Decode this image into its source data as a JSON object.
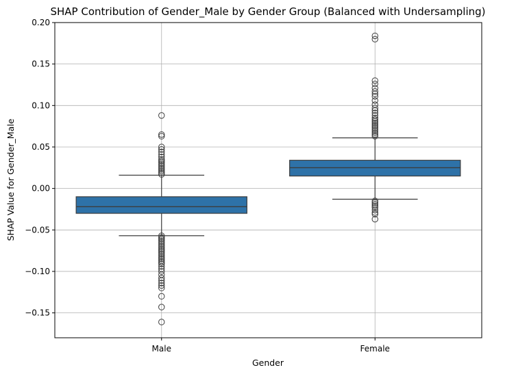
{
  "chart_data": {
    "type": "box",
    "title": "SHAP Contribution of Gender_Male by Gender Group (Balanced with Undersampling)",
    "xlabel": "Gender",
    "ylabel": "SHAP Value for Gender_Male",
    "ylim": [
      -0.18,
      0.2
    ],
    "yticks": [
      -0.15,
      -0.1,
      -0.05,
      0.0,
      0.05,
      0.1,
      0.15,
      0.2
    ],
    "ytick_labels": [
      "−0.15",
      "−0.10",
      "−0.05",
      "0.00",
      "0.05",
      "0.10",
      "0.15",
      "0.20"
    ],
    "grid": true,
    "box_color": "#2e72a8",
    "categories": [
      "Male",
      "Female"
    ],
    "boxes": [
      {
        "name": "Male",
        "whisker_low": -0.057,
        "q1": -0.03,
        "median": -0.022,
        "q3": -0.01,
        "whisker_high": 0.016,
        "outliers": [
          0.088,
          0.065,
          0.063,
          0.05,
          0.047,
          0.044,
          0.041,
          0.038,
          0.035,
          0.033,
          0.031,
          0.029,
          0.027,
          0.025,
          0.023,
          0.021,
          0.019,
          0.017,
          -0.057,
          -0.059,
          -0.061,
          -0.063,
          -0.065,
          -0.067,
          -0.069,
          -0.071,
          -0.073,
          -0.075,
          -0.077,
          -0.079,
          -0.081,
          -0.083,
          -0.085,
          -0.087,
          -0.089,
          -0.091,
          -0.094,
          -0.097,
          -0.1,
          -0.104,
          -0.108,
          -0.111,
          -0.114,
          -0.117,
          -0.12,
          -0.13,
          -0.143,
          -0.161
        ]
      },
      {
        "name": "Female",
        "whisker_low": -0.013,
        "q1": 0.015,
        "median": 0.025,
        "q3": 0.034,
        "whisker_high": 0.061,
        "outliers": [
          0.184,
          0.18,
          0.13,
          0.126,
          0.121,
          0.117,
          0.114,
          0.111,
          0.106,
          0.101,
          0.097,
          0.094,
          0.091,
          0.088,
          0.085,
          0.083,
          0.081,
          0.079,
          0.077,
          0.075,
          0.073,
          0.071,
          0.069,
          0.067,
          0.065,
          0.063,
          -0.015,
          -0.017,
          -0.019,
          -0.021,
          -0.023,
          -0.026,
          -0.029,
          -0.031,
          -0.037
        ]
      }
    ]
  }
}
